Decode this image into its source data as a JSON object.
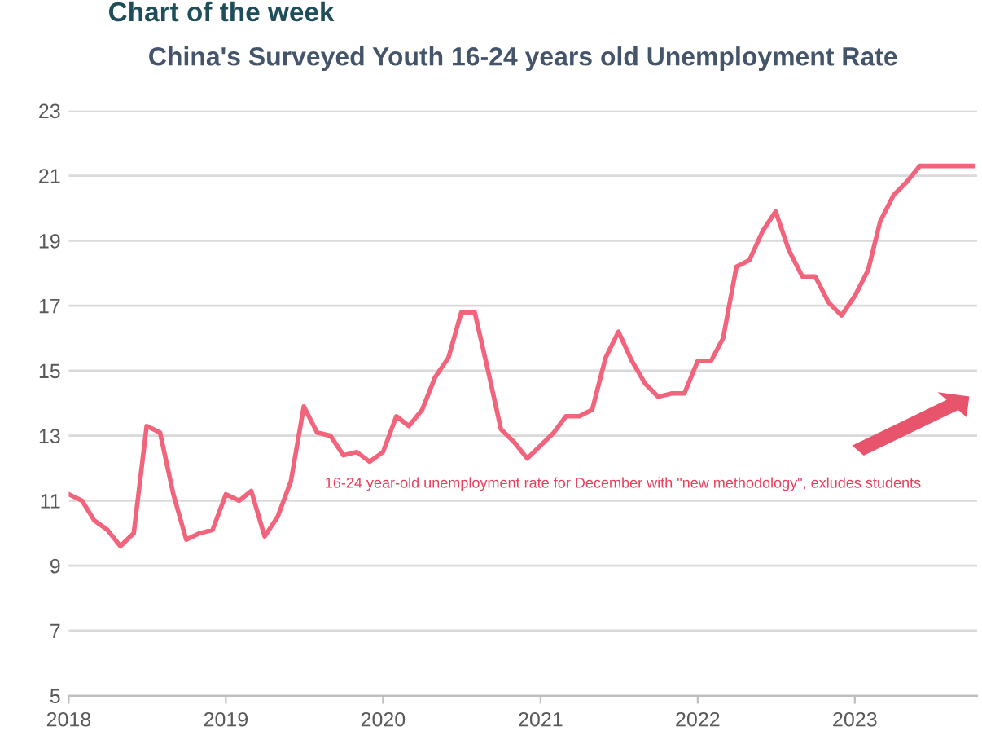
{
  "chart_data": {
    "type": "line",
    "title": "China's Surveyed Youth 16-24 years old Unemployment Rate",
    "annotations": [
      "Chart of the week",
      "16-24 year-old unemployment rate for December with \"new methodology\", exludes students"
    ],
    "x": [
      "2018-01",
      "2018-02",
      "2018-03",
      "2018-04",
      "2018-05",
      "2018-06",
      "2018-07",
      "2018-08",
      "2018-09",
      "2018-10",
      "2018-11",
      "2018-12",
      "2019-01",
      "2019-02",
      "2019-03",
      "2019-04",
      "2019-05",
      "2019-06",
      "2019-07",
      "2019-08",
      "2019-09",
      "2019-10",
      "2019-11",
      "2019-12",
      "2020-01",
      "2020-02",
      "2020-03",
      "2020-04",
      "2020-05",
      "2020-06",
      "2020-07",
      "2020-08",
      "2020-09",
      "2020-10",
      "2020-11",
      "2020-12",
      "2021-01",
      "2021-02",
      "2021-03",
      "2021-04",
      "2021-05",
      "2021-06",
      "2021-07",
      "2021-08",
      "2021-09",
      "2021-10",
      "2021-11",
      "2021-12",
      "2022-01",
      "2022-02",
      "2022-03",
      "2022-04",
      "2022-05",
      "2022-06",
      "2022-07",
      "2022-08",
      "2022-09",
      "2022-10",
      "2022-11",
      "2022-12",
      "2023-01",
      "2023-02",
      "2023-03",
      "2023-04",
      "2023-05",
      "2023-06",
      "2023-10"
    ],
    "series": [
      {
        "color": "#f2637c",
        "values": [
          11.2,
          11.0,
          10.4,
          10.1,
          9.6,
          10.0,
          13.3,
          13.1,
          11.2,
          9.8,
          10.0,
          10.1,
          11.2,
          11.0,
          11.3,
          9.9,
          10.5,
          11.6,
          13.9,
          13.1,
          13.0,
          12.4,
          12.5,
          12.2,
          12.5,
          13.6,
          13.3,
          13.8,
          14.8,
          15.4,
          16.8,
          16.8,
          15.0,
          13.2,
          12.8,
          12.3,
          12.7,
          13.1,
          13.6,
          13.6,
          13.8,
          15.4,
          16.2,
          15.3,
          14.6,
          14.2,
          14.3,
          14.3,
          15.3,
          15.3,
          16.0,
          18.2,
          18.4,
          19.3,
          19.9,
          18.7,
          17.9,
          17.9,
          17.1,
          16.7,
          17.3,
          18.1,
          19.6,
          20.4,
          20.8,
          21.3,
          21.3
        ]
      }
    ],
    "xlim": [
      "2018-01",
      "2023-10-12"
    ],
    "xticks": [
      {
        "value": "2018-01",
        "label": "2018"
      },
      {
        "value": "2019-01",
        "label": "2019"
      },
      {
        "value": "2020-01",
        "label": "2020"
      },
      {
        "value": "2021-01",
        "label": "2021"
      },
      {
        "value": "2022-01",
        "label": "2022"
      },
      {
        "value": "2023-01",
        "label": "2023"
      }
    ],
    "ylim": [
      5,
      23
    ],
    "yticks": [
      5,
      7,
      9,
      11,
      13,
      15,
      17,
      19,
      21,
      23
    ],
    "grid": "y",
    "marker": "none",
    "line_style": "solid",
    "legend": false
  }
}
